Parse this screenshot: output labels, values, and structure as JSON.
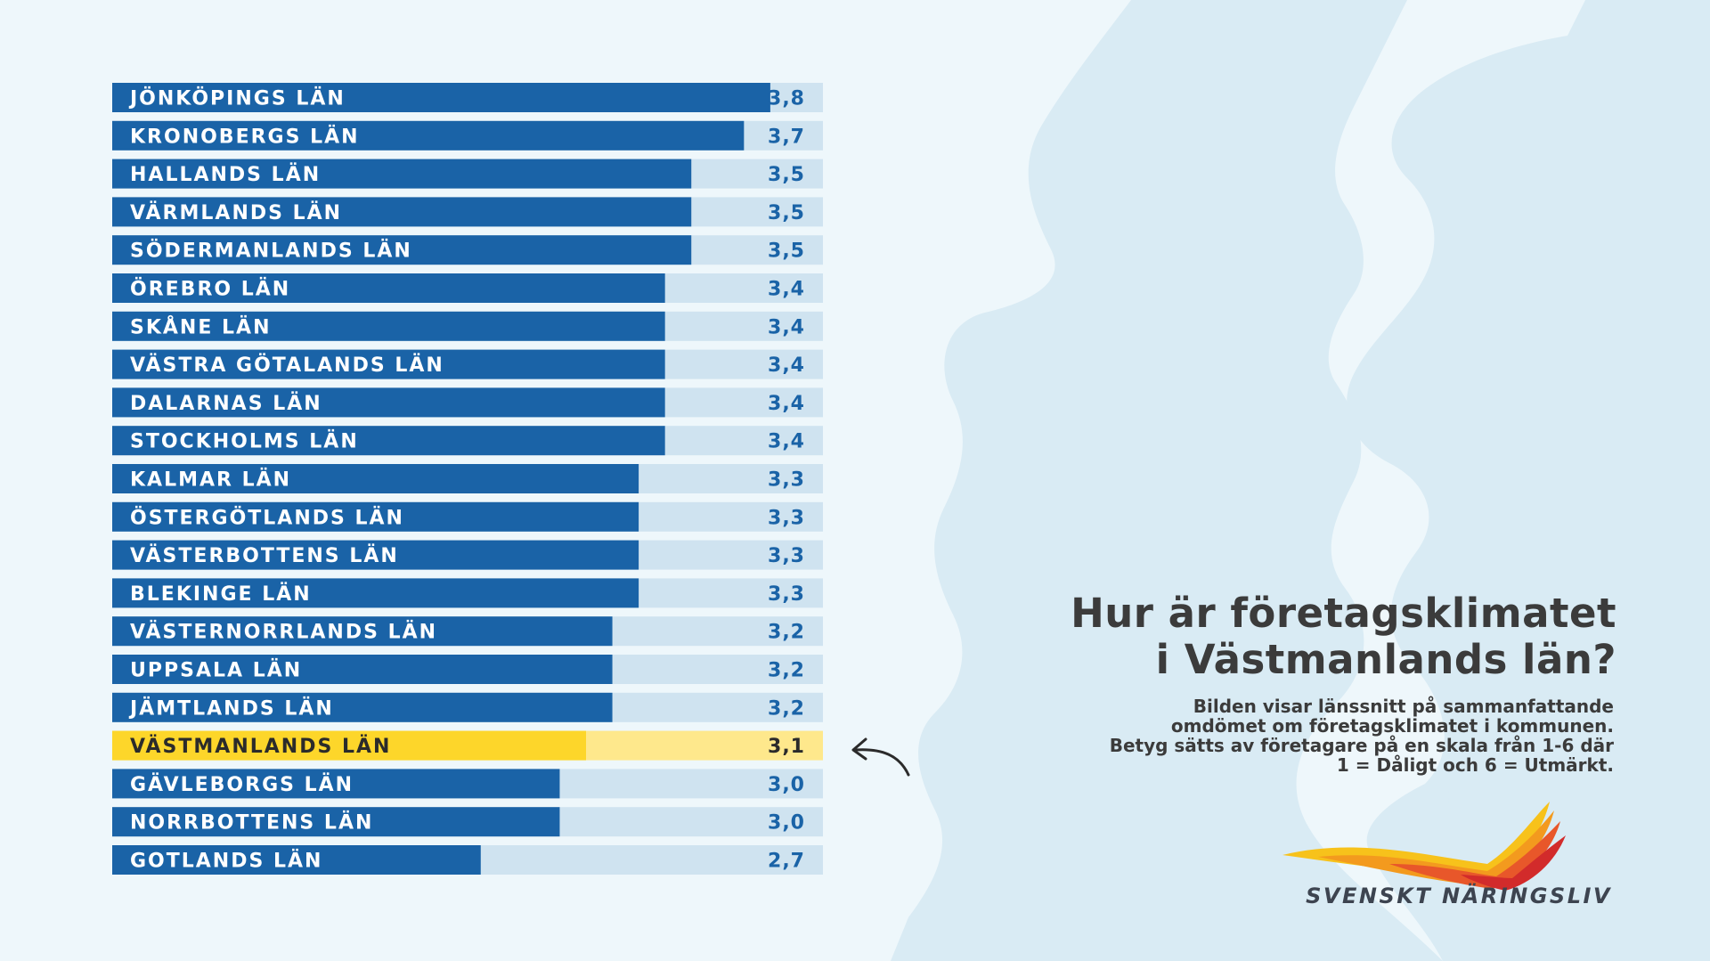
{
  "chart_data": {
    "type": "bar",
    "orientation": "horizontal",
    "categories": [
      "JÖNKÖPINGS LÄN",
      "KRONOBERGS LÄN",
      "HALLANDS LÄN",
      "VÄRMLANDS LÄN",
      "SÖDERMANLANDS LÄN",
      "ÖREBRO LÄN",
      "SKÅNE LÄN",
      "VÄSTRA GÖTALANDS LÄN",
      "DALARNAS LÄN",
      "STOCKHOLMS LÄN",
      "KALMAR LÄN",
      "ÖSTERGÖTLANDS LÄN",
      "VÄSTERBOTTENS LÄN",
      "BLEKINGE LÄN",
      "VÄSTERNORRLANDS LÄN",
      "UPPSALA LÄN",
      "JÄMTLANDS LÄN",
      "VÄSTMANLANDS LÄN",
      "GÄVLEBORGS LÄN",
      "NORRBOTTENS LÄN",
      "GOTLANDS LÄN"
    ],
    "values": [
      3.8,
      3.7,
      3.5,
      3.5,
      3.5,
      3.4,
      3.4,
      3.4,
      3.4,
      3.4,
      3.3,
      3.3,
      3.3,
      3.3,
      3.2,
      3.2,
      3.2,
      3.1,
      3.0,
      3.0,
      2.7
    ],
    "value_labels": [
      "3,8",
      "3,7",
      "3,5",
      "3,5",
      "3,5",
      "3,4",
      "3,4",
      "3,4",
      "3,4",
      "3,4",
      "3,3",
      "3,3",
      "3,3",
      "3,3",
      "3,2",
      "3,2",
      "3,2",
      "3,1",
      "3,0",
      "3,0",
      "2,7"
    ],
    "highlight": "VÄSTMANLANDS LÄN",
    "colors": {
      "bar": "#1a63a7",
      "track": "#cfe3f0",
      "label": "#ffffff",
      "value": "#1a63a7",
      "highlight_bar": "#fdd62a",
      "highlight_track": "#fee88c",
      "highlight_label": "#2b2b2b"
    }
  },
  "headline": {
    "line1": "Hur är företagsklimatet",
    "line2": "i Västmanlands län?"
  },
  "description": {
    "line1": "Bilden visar länssnitt på sammanfattande",
    "line2": "omdömet om företagsklimatet i kommunen.",
    "line3": "Betyg sätts av företagare på en skala från 1-6 där",
    "line4": "1 = Dåligt och 6 = Utmärkt."
  },
  "logo": {
    "text": "SVENSKT NÄRINGSLIV",
    "icon": "flame-wings-logo",
    "colors": [
      "#f7c21b",
      "#f39a1e",
      "#e8572a",
      "#d22b2b"
    ]
  },
  "pointer": {
    "icon": "curved-arrow-icon",
    "color": "#2b2b2b"
  },
  "background": {
    "map_color": "#d9ebf4",
    "color": "#eef7fb"
  }
}
